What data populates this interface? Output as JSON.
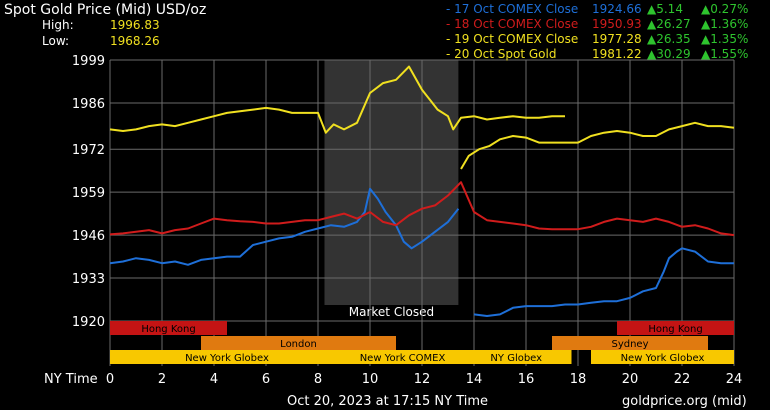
{
  "header": {
    "title": "Spot Gold Price (Mid) USD/oz",
    "high_label": "High:",
    "high_value": "1996.83",
    "low_label": "Low:",
    "low_value": "1968.26"
  },
  "footer": {
    "timestamp": "Oct 20, 2023 at 17:15 NY Time",
    "source": "goldprice.org (mid)"
  },
  "colors": {
    "oct17": "#1e6fd8",
    "oct18": "#d01c1c",
    "oct19": "#f0e020",
    "oct20": "#f0e020",
    "up": "#2ec42e",
    "market_closed_shade": "#333333",
    "grid": "#6a6a6a",
    "hong_kong": "#c41414",
    "london": "#e07a10",
    "sydney": "#e07a10",
    "new_york": "#f8c800"
  },
  "chart_data": {
    "type": "line",
    "title": "Spot Gold Price (Mid) USD/oz",
    "xlabel": "NY Time",
    "ylabel": "",
    "xlim": [
      0,
      24
    ],
    "ylim": [
      1920,
      1999
    ],
    "x_ticks": [
      0,
      2,
      4,
      6,
      8,
      10,
      12,
      14,
      16,
      18,
      20,
      22,
      24
    ],
    "y_ticks": [
      1920,
      1933,
      1946,
      1959,
      1972,
      1986,
      1999
    ],
    "grid": true,
    "legend": [
      {
        "series": "17 Oct COMEX Close",
        "close": "1924.66",
        "change": "5.14",
        "pct": "0.27%"
      },
      {
        "series": "18 Oct COMEX Close",
        "close": "1950.93",
        "change": "26.27",
        "pct": "1.36%"
      },
      {
        "series": "19 Oct COMEX Close",
        "close": "1977.28",
        "change": "26.35",
        "pct": "1.35%"
      },
      {
        "series": "20 Oct Spot Gold",
        "close": "1981.22",
        "change": "30.29",
        "pct": "1.55%"
      }
    ],
    "legend_prefix": "-",
    "change_arrow": "▲",
    "market_closed": {
      "label": "Market Closed",
      "x_range": [
        8.25,
        13.4
      ]
    },
    "sessions": [
      {
        "name": "Hong Kong",
        "start": 0,
        "end": 4.5,
        "row": 0,
        "color_key": "hong_kong"
      },
      {
        "name": "Hong Kong",
        "start": 19.5,
        "end": 24,
        "row": 0,
        "color_key": "hong_kong"
      },
      {
        "name": "London",
        "start": 3.5,
        "end": 11,
        "row": 1,
        "color_key": "london"
      },
      {
        "name": "Sydney",
        "start": 17,
        "end": 23,
        "row": 1,
        "color_key": "sydney"
      },
      {
        "name": "New York Globex",
        "start": 0,
        "end": 9,
        "row": 2,
        "color_key": "new_york"
      },
      {
        "name": "New York COMEX",
        "start": 9,
        "end": 13.5,
        "row": 2,
        "color_key": "new_york"
      },
      {
        "name": "NY Globex",
        "start": 13.5,
        "end": 17.75,
        "row": 2,
        "color_key": "new_york"
      },
      {
        "name": "New York Globex",
        "start": 18.5,
        "end": 24,
        "row": 2,
        "color_key": "new_york"
      }
    ],
    "series": [
      {
        "name": "17 Oct",
        "color_key": "oct17",
        "x": [
          0,
          0.5,
          1,
          1.5,
          2,
          2.5,
          3,
          3.5,
          4,
          4.5,
          5,
          5.5,
          6,
          6.5,
          7,
          7.5,
          8,
          8.5,
          9,
          9.5,
          9.8,
          10,
          10.3,
          10.6,
          11,
          11.3,
          11.6,
          12,
          12.5,
          13,
          13.4
        ],
        "y": [
          1937.5,
          1938,
          1939,
          1938.5,
          1937.5,
          1938,
          1937,
          1938.5,
          1939,
          1939.5,
          1939.5,
          1943,
          1944,
          1945,
          1945.5,
          1947,
          1948,
          1949,
          1948.5,
          1950,
          1953,
          1960,
          1957,
          1953,
          1949,
          1944,
          1942,
          1944,
          1947,
          1950,
          1954
        ],
        "x2": [
          14,
          14.5,
          15,
          15.5,
          16,
          16.5,
          17,
          17.5,
          18,
          18.5,
          19,
          19.5,
          20,
          20.5,
          21,
          21.3,
          21.5,
          21.8,
          22,
          22.5,
          23,
          23.5,
          24
        ],
        "y2": [
          1922,
          1921.5,
          1922,
          1924,
          1924.5,
          1924.5,
          1924.5,
          1925,
          1925,
          1925.5,
          1926,
          1926,
          1927,
          1929,
          1930,
          1935,
          1939,
          1941,
          1942,
          1941,
          1938,
          1937.5,
          1937.5
        ]
      },
      {
        "name": "18 Oct",
        "color_key": "oct18",
        "x": [
          0,
          0.5,
          1,
          1.5,
          2,
          2.5,
          3,
          3.5,
          4,
          4.5,
          5,
          5.5,
          6,
          6.5,
          7,
          7.5,
          8,
          8.5,
          9,
          9.5,
          10,
          10.5,
          11,
          11.5,
          12,
          12.5,
          13,
          13.5,
          14,
          14.5,
          15,
          15.5,
          16,
          16.5,
          17,
          17.5,
          18,
          18.5,
          19,
          19.5,
          20,
          20.5,
          21,
          21.5,
          22,
          22.5,
          23,
          23.5,
          24
        ],
        "y": [
          1946.2,
          1946.5,
          1947,
          1947.5,
          1946.5,
          1947.5,
          1948,
          1949.5,
          1951,
          1950.5,
          1950.2,
          1950,
          1949.5,
          1949.5,
          1950,
          1950.5,
          1950.5,
          1951.5,
          1952.5,
          1951,
          1953,
          1950,
          1949,
          1952,
          1954,
          1955,
          1958,
          1962,
          1953,
          1950.5,
          1950,
          1949.5,
          1949,
          1948,
          1947.8,
          1947.8,
          1947.8,
          1948.5,
          1950,
          1951,
          1950.5,
          1950,
          1951,
          1950,
          1948.5,
          1949,
          1948,
          1946.5,
          1946
        ]
      },
      {
        "name": "19 Oct",
        "color_key": "oct19",
        "x": [
          0,
          0.5,
          1,
          1.5,
          2,
          2.5,
          3,
          3.5,
          4,
          4.5,
          5,
          5.5,
          6,
          6.5,
          7,
          7.5,
          8,
          8.3,
          8.6,
          9,
          9.5,
          10,
          10.5,
          11,
          11.5,
          12,
          12.3,
          12.6,
          13,
          13.2,
          13.5,
          14,
          14.5,
          15,
          15.5,
          16,
          16.5,
          17,
          17.5
        ],
        "y": [
          1978,
          1977.5,
          1978,
          1979,
          1979.5,
          1979,
          1980,
          1981,
          1982,
          1983,
          1983.5,
          1984,
          1984.5,
          1984,
          1983,
          1983,
          1983,
          1977,
          1979.5,
          1978,
          1980,
          1989,
          1992,
          1993,
          1997,
          1990,
          1987,
          1984,
          1982,
          1978,
          1981.5,
          1982,
          1981,
          1981.5,
          1982,
          1981.5,
          1981.5,
          1982,
          1982
        ]
      },
      {
        "name": "20 Oct",
        "color_key": "oct20",
        "x": [
          13.5,
          13.8,
          14.2,
          14.6,
          15,
          15.5,
          16,
          16.5,
          17,
          17.5,
          18,
          18.5,
          19,
          19.5,
          20,
          20.5,
          21,
          21.5,
          22,
          22.5,
          23,
          23.5,
          24
        ],
        "y": [
          1966,
          1970,
          1972,
          1973,
          1975,
          1976,
          1975.5,
          1974,
          1974,
          1974,
          1974,
          1976,
          1977,
          1977.5,
          1977,
          1976,
          1976,
          1978,
          1979,
          1980,
          1979,
          1979,
          1978.5
        ]
      }
    ]
  }
}
